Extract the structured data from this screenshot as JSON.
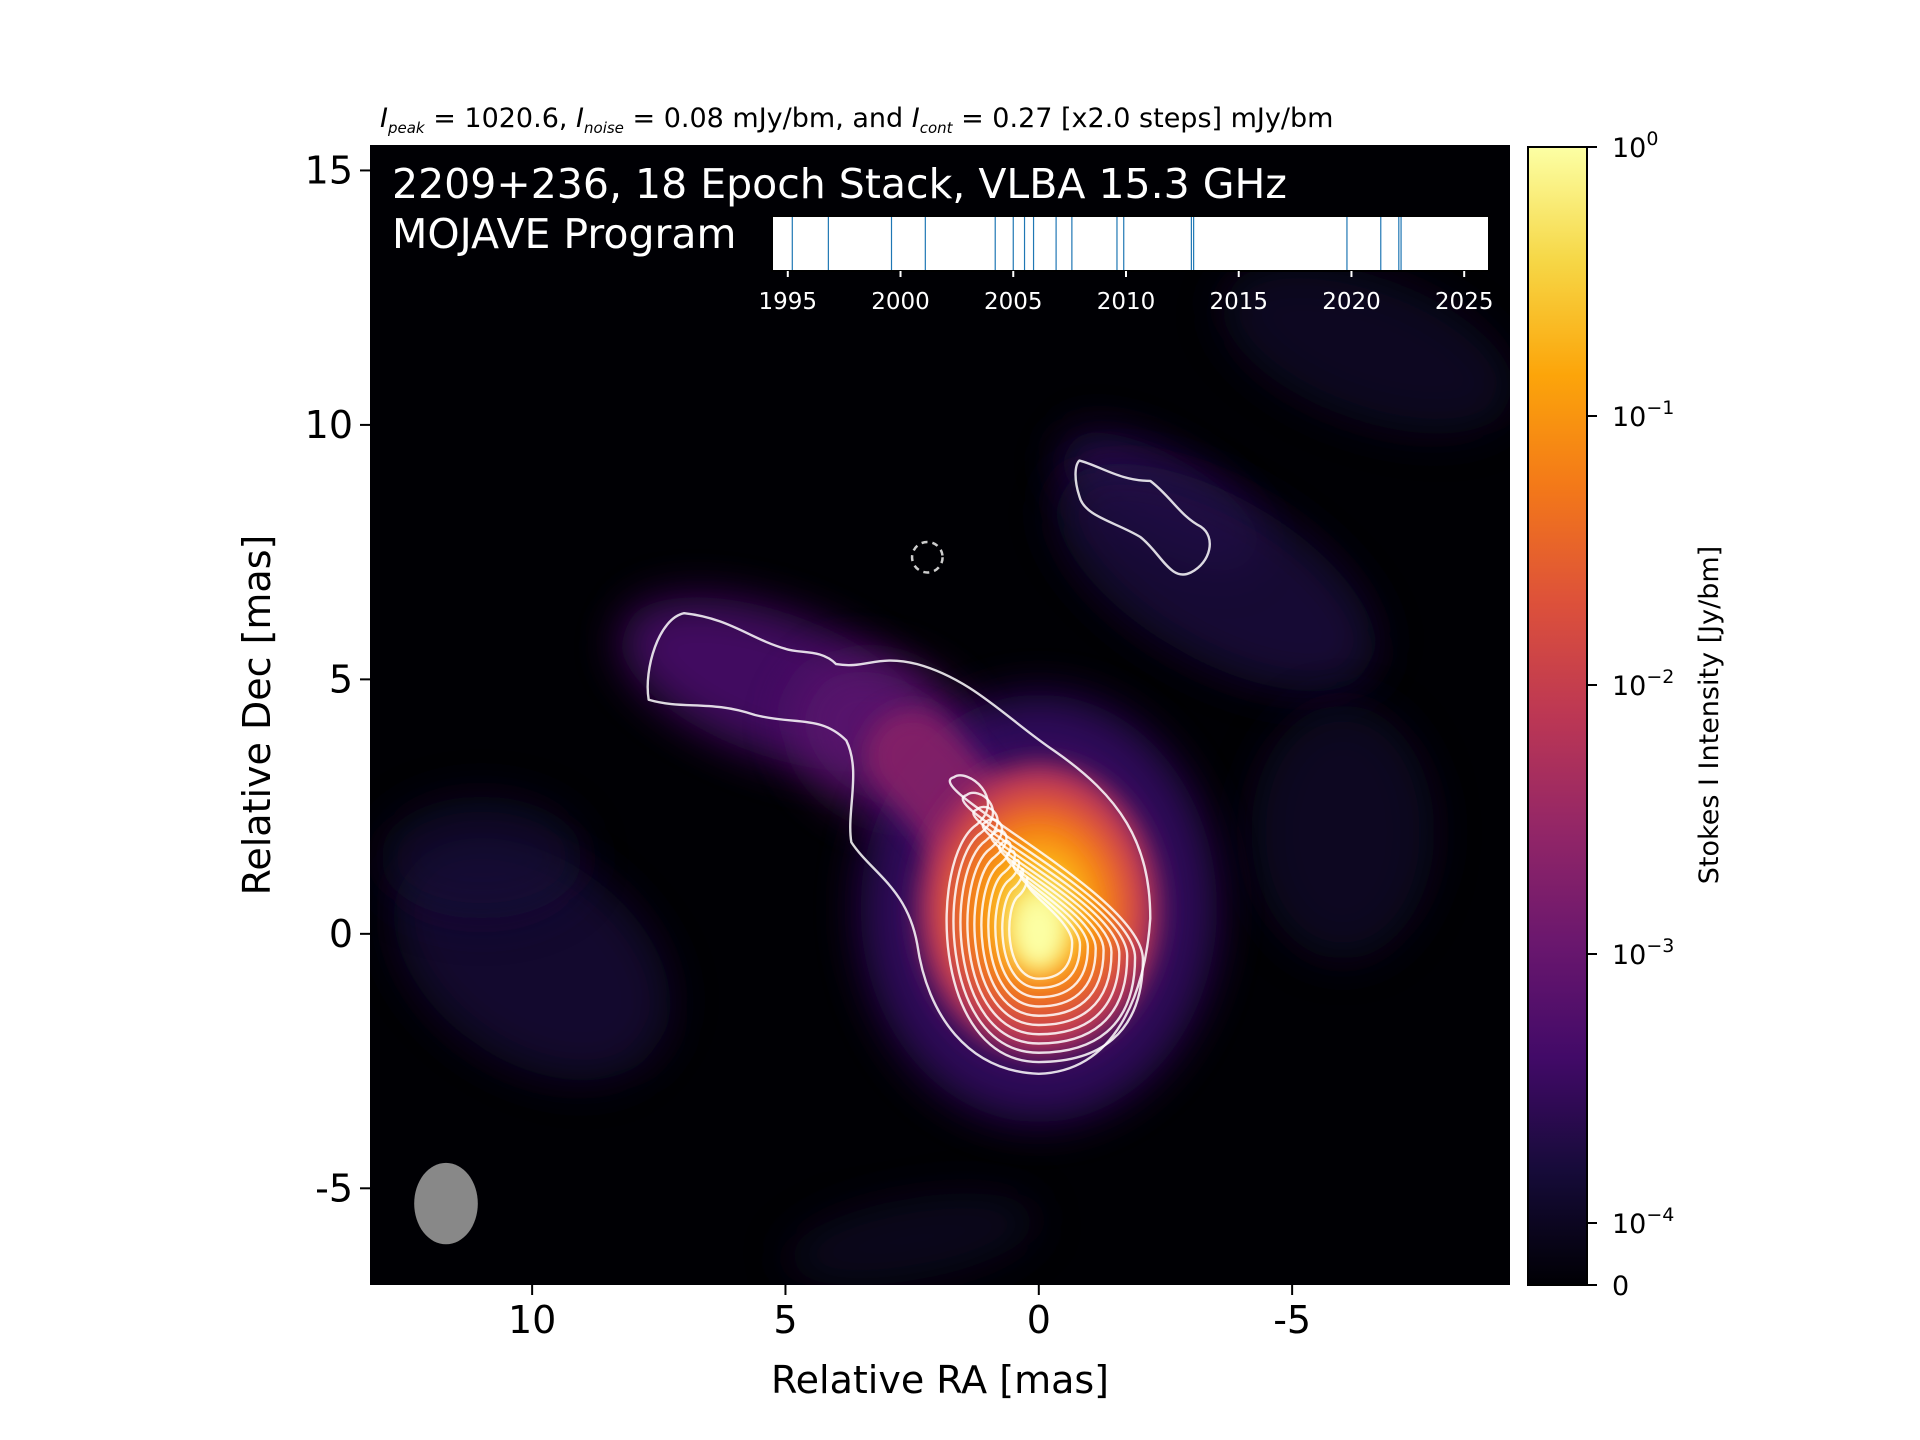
{
  "header": {
    "peak_symbol": "I",
    "peak_sub": "peak",
    "peak_text": " = 1020.6, ",
    "noise_symbol": "I",
    "noise_sub": "noise",
    "noise_text": " = 0.08 mJy/bm, and ",
    "cont_symbol": "I",
    "cont_sub": "cont",
    "cont_text": " = 0.27 [x2.0 steps] mJy/bm"
  },
  "overlay": {
    "title_line1": "2209+236, 18 Epoch Stack, VLBA 15.3 GHz",
    "title_line2": "MOJAVE Program"
  },
  "colorbar": {
    "label": "Stokes I Intensity [Jy/bm]",
    "colormap": "inferno",
    "ticks": [
      {
        "base": "10",
        "exp": "0",
        "value": 1
      },
      {
        "base": "10",
        "exp": "−1",
        "value": 0.1
      },
      {
        "base": "10",
        "exp": "−2",
        "value": 0.01
      },
      {
        "base": "10",
        "exp": "−3",
        "value": 0.001
      },
      {
        "base": "10",
        "exp": "−4",
        "value": 0.0001
      },
      {
        "base": "0",
        "exp": "",
        "value": 0
      }
    ]
  },
  "chart_data": {
    "type": "heatmap",
    "xlabel": "Relative RA [mas]",
    "ylabel": "Relative Dec [mas]",
    "xlim": [
      13.2,
      -9.3
    ],
    "ylim": [
      -6.9,
      15.5
    ],
    "xticks": [
      10,
      5,
      0,
      -5
    ],
    "xtick_labels": [
      "10",
      "5",
      "0",
      "-5"
    ],
    "yticks": [
      15,
      10,
      5,
      0,
      -5
    ],
    "ytick_labels": [
      "15",
      "10",
      "5",
      "0",
      "-5"
    ],
    "peak_position": [
      0,
      0
    ],
    "peak_intensity_mJy_per_beam": 1020.6,
    "noise_mJy_per_beam": 0.08,
    "lowest_contour_mJy_per_beam": 0.27,
    "contour_step_factor": 2.0,
    "colors": {
      "background": "#000004",
      "contour": "#ffffff",
      "beam": "#888888"
    },
    "jet_components": [
      {
        "ra": 0.0,
        "dec": 0.0,
        "rel_intensity": 1.0
      },
      {
        "ra": 1.4,
        "dec": 2.7,
        "rel_intensity": 0.01
      },
      {
        "ra": 2.4,
        "dec": 3.4,
        "rel_intensity": 0.004
      },
      {
        "ra": 5.2,
        "dec": 5.0,
        "rel_intensity": 0.0006
      },
      {
        "ra": -2.2,
        "dec": 8.6,
        "rel_intensity": 0.0003
      }
    ],
    "beam": {
      "ra": 11.7,
      "dec": -5.3,
      "major_mas": 1.6,
      "minor_mas": 1.25,
      "pa_deg": 0
    },
    "dashed_circle": {
      "ra": 2.2,
      "dec": 7.4,
      "radius_mas": 0.3
    },
    "epoch_inset": {
      "xlim": [
        1994.3,
        2026.1
      ],
      "ticks": [
        1995,
        2000,
        2005,
        2010,
        2015,
        2020,
        2025
      ],
      "tick_labels": [
        "1995",
        "2000",
        "2005",
        "2010",
        "2015",
        "2020",
        "2025"
      ],
      "epochs": [
        1995.2,
        1996.8,
        1999.6,
        2001.1,
        2004.2,
        2005.0,
        2005.5,
        2005.9,
        2006.9,
        2007.6,
        2009.6,
        2009.9,
        2012.9,
        2013.0,
        2019.8,
        2021.3,
        2022.1,
        2022.2
      ]
    }
  }
}
